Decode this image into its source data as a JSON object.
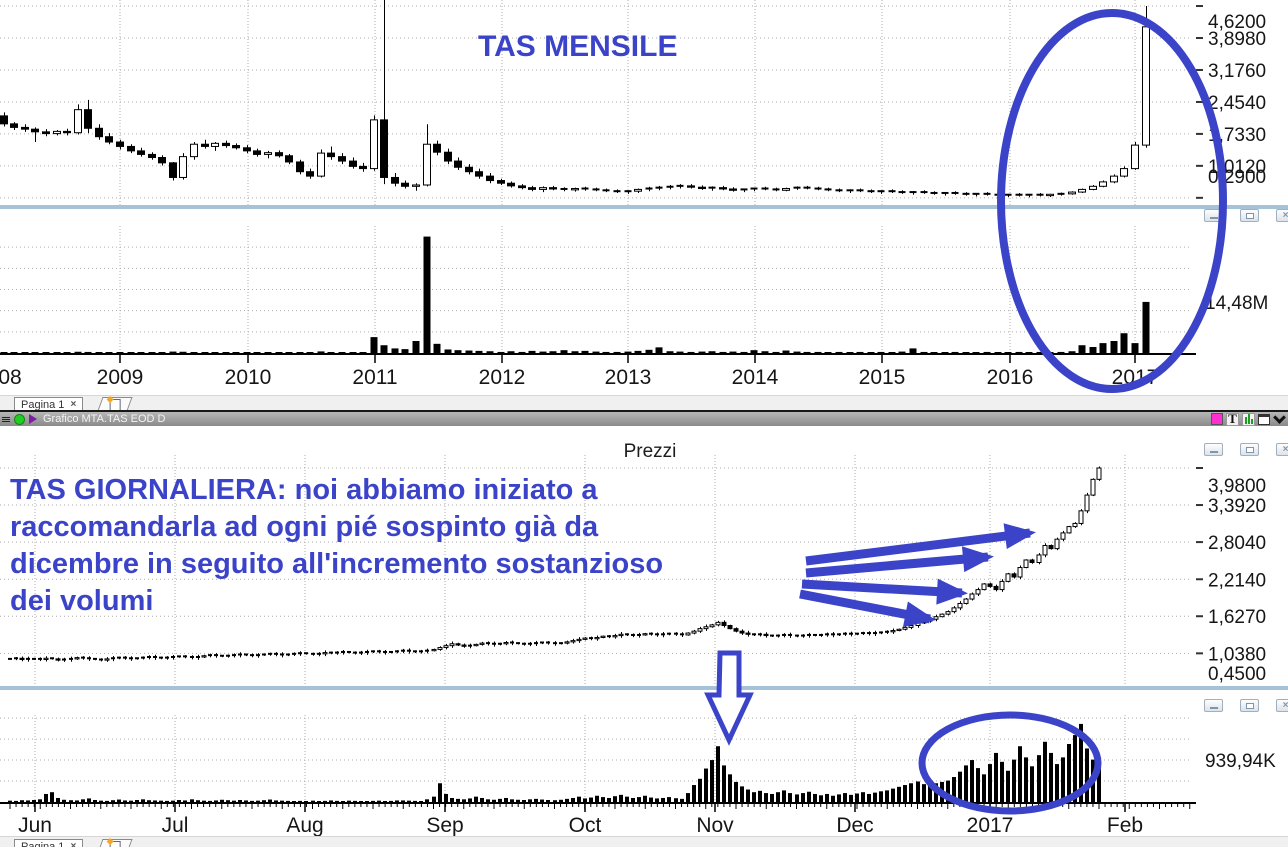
{
  "titlebar": {
    "title": "Grafico MTA.TAS EOD D",
    "text_tool_glyph": "T"
  },
  "tabs": {
    "page_tab": "Pagina 1"
  },
  "icons": {
    "close_glyph": "×",
    "tab_close_glyph": "×"
  },
  "annotations": {
    "color": "#3B43C8",
    "monthly_title": "TAS MENSILE",
    "daily_note_lines": [
      "TAS GIORNALIERA: noi abbiamo iniziato a",
      "raccomandarla ad ogni pié sospinto già da",
      "dicembre in seguito all'incremento sostanzioso",
      "dei volumi"
    ]
  },
  "chart_data": [
    {
      "type": "candlestick",
      "id": "monthly",
      "timeframe": "monthly",
      "x_labels": [
        "08",
        "2009",
        "2010",
        "2011",
        "2012",
        "2013",
        "2014",
        "2015",
        "2016",
        "2017"
      ],
      "price_ticks": [
        "4,6200",
        "3,8980",
        "3,1760",
        "2,4540",
        "1,7330",
        "1,0120",
        "0,2900"
      ],
      "price_tick_values": [
        4.62,
        3.898,
        3.176,
        2.454,
        1.733,
        1.012,
        0.29
      ],
      "ylim": [
        0.2,
        4.95
      ],
      "volume_axis_label": "14,48M",
      "volume_axis_value": 14.48,
      "volume_unit": "M",
      "grid": true,
      "candles": [
        [
          2.02,
          2.2,
          1.96,
          2.14
        ],
        [
          2.14,
          2.22,
          1.9,
          1.96
        ],
        [
          1.96,
          2.0,
          1.82,
          1.88
        ],
        [
          1.88,
          1.95,
          1.78,
          1.84
        ],
        [
          1.84,
          1.88,
          1.55,
          1.78
        ],
        [
          1.78,
          1.84,
          1.68,
          1.74
        ],
        [
          1.74,
          1.82,
          1.7,
          1.79
        ],
        [
          1.79,
          1.85,
          1.7,
          1.76
        ],
        [
          1.76,
          2.4,
          1.72,
          2.28
        ],
        [
          2.28,
          2.5,
          1.75,
          1.86
        ],
        [
          1.86,
          1.95,
          1.6,
          1.67
        ],
        [
          1.67,
          1.75,
          1.5,
          1.55
        ],
        [
          1.55,
          1.6,
          1.38,
          1.45
        ],
        [
          1.45,
          1.5,
          1.3,
          1.35
        ],
        [
          1.35,
          1.42,
          1.22,
          1.27
        ],
        [
          1.27,
          1.32,
          1.15,
          1.2
        ],
        [
          1.2,
          1.25,
          1.02,
          1.08
        ],
        [
          1.08,
          1.1,
          0.68,
          0.75
        ],
        [
          0.75,
          1.3,
          0.7,
          1.22
        ],
        [
          1.22,
          1.55,
          1.15,
          1.5
        ],
        [
          1.5,
          1.6,
          1.4,
          1.45
        ],
        [
          1.45,
          1.55,
          1.35,
          1.52
        ],
        [
          1.52,
          1.58,
          1.42,
          1.47
        ],
        [
          1.47,
          1.52,
          1.38,
          1.42
        ],
        [
          1.42,
          1.48,
          1.3,
          1.35
        ],
        [
          1.35,
          1.4,
          1.22,
          1.27
        ],
        [
          1.27,
          1.35,
          1.18,
          1.31
        ],
        [
          1.31,
          1.36,
          1.2,
          1.24
        ],
        [
          1.24,
          1.28,
          1.05,
          1.1
        ],
        [
          1.1,
          1.15,
          0.82,
          0.88
        ],
        [
          0.88,
          0.95,
          0.72,
          0.78
        ],
        [
          0.78,
          1.38,
          0.75,
          1.3
        ],
        [
          1.3,
          1.45,
          1.15,
          1.22
        ],
        [
          1.22,
          1.3,
          1.05,
          1.12
        ],
        [
          1.12,
          1.2,
          0.95,
          1.0
        ],
        [
          1.0,
          1.08,
          0.88,
          0.95
        ],
        [
          0.95,
          2.15,
          0.9,
          2.05
        ],
        [
          2.05,
          4.95,
          0.6,
          0.75
        ],
        [
          0.75,
          0.85,
          0.55,
          0.62
        ],
        [
          0.62,
          0.68,
          0.5,
          0.55
        ],
        [
          0.55,
          0.62,
          0.45,
          0.58
        ],
        [
          0.58,
          1.95,
          0.55,
          1.5
        ],
        [
          1.5,
          1.58,
          1.25,
          1.32
        ],
        [
          1.32,
          1.4,
          1.05,
          1.12
        ],
        [
          1.12,
          1.2,
          0.92,
          0.98
        ],
        [
          0.98,
          1.05,
          0.82,
          0.88
        ],
        [
          0.88,
          0.95,
          0.72,
          0.78
        ],
        [
          0.78,
          0.85,
          0.62,
          0.68
        ],
        [
          0.68,
          0.72,
          0.58,
          0.62
        ],
        [
          0.62,
          0.66,
          0.52,
          0.56
        ],
        [
          0.56,
          0.6,
          0.48,
          0.52
        ],
        [
          0.52,
          0.56,
          0.44,
          0.48
        ],
        [
          0.48,
          0.55,
          0.42,
          0.52
        ],
        [
          0.52,
          0.56,
          0.46,
          0.49
        ],
        [
          0.49,
          0.53,
          0.44,
          0.47
        ],
        [
          0.47,
          0.52,
          0.43,
          0.5
        ],
        [
          0.5,
          0.54,
          0.45,
          0.48
        ],
        [
          0.48,
          0.52,
          0.44,
          0.46
        ],
        [
          0.46,
          0.5,
          0.42,
          0.44
        ],
        [
          0.44,
          0.48,
          0.4,
          0.42
        ],
        [
          0.42,
          0.46,
          0.38,
          0.44
        ],
        [
          0.44,
          0.5,
          0.4,
          0.48
        ],
        [
          0.48,
          0.54,
          0.44,
          0.5
        ],
        [
          0.5,
          0.56,
          0.46,
          0.52
        ],
        [
          0.52,
          0.58,
          0.48,
          0.54
        ],
        [
          0.54,
          0.6,
          0.5,
          0.56
        ],
        [
          0.56,
          0.6,
          0.5,
          0.53
        ],
        [
          0.53,
          0.57,
          0.47,
          0.5
        ],
        [
          0.5,
          0.55,
          0.45,
          0.52
        ],
        [
          0.52,
          0.56,
          0.46,
          0.49
        ],
        [
          0.49,
          0.53,
          0.43,
          0.46
        ],
        [
          0.46,
          0.5,
          0.42,
          0.48
        ],
        [
          0.48,
          0.52,
          0.44,
          0.5
        ],
        [
          0.5,
          0.54,
          0.46,
          0.48
        ],
        [
          0.48,
          0.52,
          0.44,
          0.46
        ],
        [
          0.46,
          0.52,
          0.44,
          0.5
        ],
        [
          0.5,
          0.55,
          0.47,
          0.52
        ],
        [
          0.52,
          0.56,
          0.48,
          0.5
        ],
        [
          0.5,
          0.54,
          0.46,
          0.48
        ],
        [
          0.48,
          0.52,
          0.44,
          0.46
        ],
        [
          0.46,
          0.5,
          0.42,
          0.44
        ],
        [
          0.44,
          0.48,
          0.4,
          0.46
        ],
        [
          0.46,
          0.5,
          0.42,
          0.44
        ],
        [
          0.44,
          0.48,
          0.4,
          0.42
        ],
        [
          0.42,
          0.46,
          0.38,
          0.44
        ],
        [
          0.44,
          0.48,
          0.4,
          0.42
        ],
        [
          0.42,
          0.46,
          0.38,
          0.4
        ],
        [
          0.4,
          0.44,
          0.36,
          0.42
        ],
        [
          0.42,
          0.46,
          0.38,
          0.4
        ],
        [
          0.4,
          0.44,
          0.36,
          0.38
        ],
        [
          0.38,
          0.42,
          0.34,
          0.4
        ],
        [
          0.4,
          0.44,
          0.36,
          0.38
        ],
        [
          0.38,
          0.42,
          0.34,
          0.36
        ],
        [
          0.36,
          0.4,
          0.32,
          0.38
        ],
        [
          0.38,
          0.42,
          0.34,
          0.36
        ],
        [
          0.36,
          0.4,
          0.32,
          0.34
        ],
        [
          0.34,
          0.38,
          0.31,
          0.36
        ],
        [
          0.36,
          0.4,
          0.32,
          0.34
        ],
        [
          0.34,
          0.38,
          0.3,
          0.36
        ],
        [
          0.36,
          0.4,
          0.32,
          0.34
        ],
        [
          0.34,
          0.38,
          0.31,
          0.37
        ],
        [
          0.37,
          0.41,
          0.34,
          0.38
        ],
        [
          0.38,
          0.44,
          0.36,
          0.42
        ],
        [
          0.42,
          0.5,
          0.4,
          0.48
        ],
        [
          0.48,
          0.58,
          0.46,
          0.55
        ],
        [
          0.55,
          0.68,
          0.53,
          0.65
        ],
        [
          0.65,
          0.82,
          0.62,
          0.78
        ],
        [
          0.78,
          1.0,
          0.75,
          0.95
        ],
        [
          0.95,
          1.55,
          0.92,
          1.48
        ],
        [
          1.48,
          4.62,
          1.42,
          4.15
        ]
      ],
      "volumes": [
        0.15,
        0.12,
        0.1,
        0.08,
        0.18,
        0.1,
        0.08,
        0.09,
        0.35,
        0.3,
        0.15,
        0.1,
        0.12,
        0.1,
        0.08,
        0.1,
        0.15,
        0.4,
        0.35,
        0.25,
        0.12,
        0.1,
        0.08,
        0.1,
        0.1,
        0.08,
        0.1,
        0.08,
        0.12,
        0.2,
        0.25,
        0.45,
        0.2,
        0.12,
        0.1,
        0.1,
        4.5,
        2.2,
        1.3,
        1.1,
        3.4,
        33.0,
        2.6,
        1.0,
        0.8,
        0.7,
        0.6,
        0.5,
        0.3,
        0.5,
        0.3,
        0.6,
        0.4,
        0.5,
        0.8,
        0.5,
        0.6,
        0.4,
        0.3,
        0.3,
        0.4,
        0.6,
        0.9,
        1.6,
        0.5,
        0.4,
        0.3,
        0.4,
        0.5,
        0.3,
        0.4,
        0.3,
        0.8,
        0.5,
        0.3,
        0.7,
        0.4,
        0.3,
        0.3,
        0.2,
        0.3,
        0.2,
        0.3,
        0.2,
        0.3,
        0.2,
        0.4,
        1.3,
        0.3,
        0.2,
        0.2,
        0.3,
        0.2,
        0.2,
        0.3,
        0.2,
        0.2,
        0.3,
        0.2,
        0.3,
        0.2,
        0.3,
        0.5,
        2.2,
        1.7,
        2.8,
        3.4,
        5.6,
        2.8,
        14.48
      ]
    },
    {
      "type": "candlestick",
      "id": "daily",
      "timeframe": "daily",
      "pane_title": "Prezzi",
      "x_labels": [
        "Jun",
        "Jul",
        "Aug",
        "Sep",
        "Oct",
        "Nov",
        "Dec",
        "2017",
        "Feb"
      ],
      "price_ticks": [
        "3,9800",
        "3,3920",
        "2,8040",
        "2,2140",
        "1,6270",
        "1,0380",
        "0,4500"
      ],
      "price_tick_values": [
        3.98,
        3.392,
        2.804,
        2.214,
        1.627,
        1.038,
        0.45
      ],
      "ylim": [
        0.45,
        4.05
      ],
      "volume_axis_label": "939,94K",
      "volume_axis_value": 940,
      "volume_unit": "K",
      "grid": true,
      "closes": [
        0.95,
        0.96,
        0.94,
        0.95,
        0.95,
        0.94,
        0.96,
        0.95,
        0.93,
        0.94,
        0.95,
        0.97,
        0.96,
        0.95,
        0.94,
        0.93,
        0.95,
        0.96,
        0.97,
        0.96,
        0.95,
        0.96,
        0.97,
        0.98,
        0.97,
        0.96,
        0.97,
        0.98,
        0.99,
        0.98,
        0.97,
        0.98,
        1.0,
        1.01,
        1.0,
        0.99,
        1.0,
        1.01,
        1.02,
        1.01,
        1.0,
        1.01,
        1.02,
        1.03,
        1.02,
        1.01,
        1.02,
        1.03,
        1.04,
        1.03,
        1.02,
        1.03,
        1.05,
        1.04,
        1.05,
        1.06,
        1.05,
        1.04,
        1.05,
        1.06,
        1.07,
        1.06,
        1.05,
        1.06,
        1.07,
        1.08,
        1.07,
        1.06,
        1.07,
        1.08,
        1.1,
        1.13,
        1.16,
        1.19,
        1.17,
        1.15,
        1.16,
        1.18,
        1.2,
        1.19,
        1.18,
        1.19,
        1.21,
        1.2,
        1.19,
        1.18,
        1.19,
        1.2,
        1.21,
        1.2,
        1.19,
        1.2,
        1.22,
        1.24,
        1.26,
        1.28,
        1.27,
        1.29,
        1.31,
        1.3,
        1.32,
        1.34,
        1.33,
        1.32,
        1.33,
        1.35,
        1.34,
        1.33,
        1.34,
        1.35,
        1.34,
        1.33,
        1.36,
        1.39,
        1.43,
        1.46,
        1.49,
        1.53,
        1.48,
        1.43,
        1.39,
        1.36,
        1.34,
        1.33,
        1.34,
        1.32,
        1.31,
        1.32,
        1.33,
        1.32,
        1.31,
        1.32,
        1.33,
        1.32,
        1.33,
        1.34,
        1.33,
        1.34,
        1.35,
        1.34,
        1.35,
        1.36,
        1.35,
        1.36,
        1.37,
        1.38,
        1.4,
        1.42,
        1.45,
        1.48,
        1.52,
        1.55,
        1.58,
        1.62,
        1.66,
        1.7,
        1.76,
        1.83,
        1.9,
        1.98,
        2.05,
        2.14,
        2.1,
        2.05,
        2.18,
        2.3,
        2.25,
        2.4,
        2.52,
        2.48,
        2.6,
        2.75,
        2.7,
        2.85,
        2.95,
        3.05,
        3.1,
        3.3,
        3.55,
        3.8,
        3.98
      ],
      "volumes": [
        30,
        25,
        40,
        35,
        45,
        60,
        180,
        220,
        90,
        50,
        40,
        35,
        60,
        80,
        45,
        30,
        25,
        40,
        55,
        35,
        30,
        45,
        60,
        40,
        35,
        30,
        25,
        30,
        45,
        35,
        60,
        40,
        30,
        25,
        35,
        50,
        40,
        30,
        45,
        35,
        25,
        30,
        40,
        55,
        35,
        30,
        25,
        20,
        25,
        15,
        30,
        20,
        25,
        35,
        25,
        20,
        30,
        25,
        20,
        15,
        25,
        30,
        20,
        25,
        35,
        35,
        30,
        25,
        20,
        60,
        120,
        420,
        180,
        90,
        70,
        60,
        80,
        120,
        90,
        60,
        50,
        70,
        90,
        60,
        50,
        45,
        60,
        70,
        55,
        45,
        40,
        50,
        70,
        90,
        120,
        80,
        100,
        140,
        110,
        90,
        130,
        160,
        120,
        90,
        110,
        140,
        100,
        80,
        90,
        110,
        85,
        70,
        200,
        380,
        520,
        750,
        940,
        1250,
        820,
        620,
        450,
        350,
        280,
        220,
        250,
        200,
        180,
        220,
        260,
        200,
        170,
        200,
        230,
        180,
        150,
        180,
        140,
        170,
        200,
        160,
        190,
        220,
        180,
        210,
        240,
        260,
        300,
        340,
        380,
        420,
        460,
        400,
        380,
        420,
        450,
        480,
        560,
        680,
        820,
        940,
        760,
        620,
        850,
        1100,
        900,
        700,
        950,
        1250,
        1000,
        800,
        1050,
        1350,
        1100,
        850,
        1000,
        1300,
        1500,
        1750,
        1200,
        950,
        940
      ]
    }
  ]
}
